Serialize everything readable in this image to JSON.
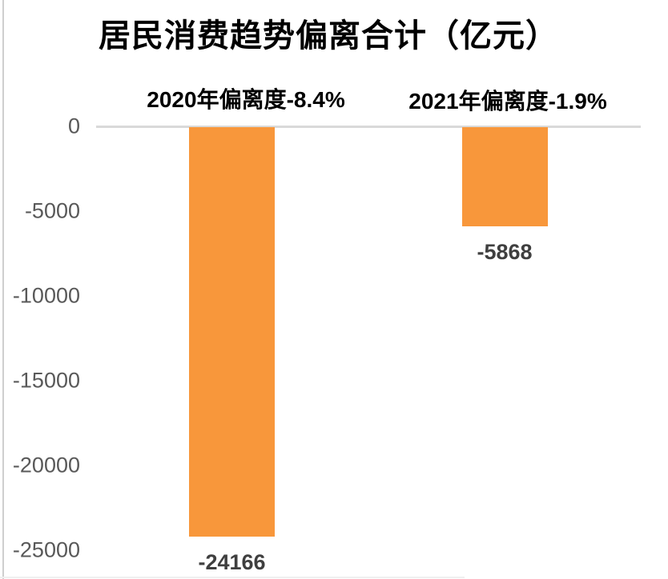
{
  "page": {
    "background_color": "#ffffff",
    "left_edge_line_color": "#cfcfcf"
  },
  "chart_data": {
    "type": "bar",
    "title": "居民消费趋势偏离合计（亿元）",
    "xlabel": "",
    "ylabel": "",
    "categories": [
      "2020",
      "2021"
    ],
    "values": [
      -24166,
      -5868
    ],
    "value_labels": [
      "-24166",
      "-5868"
    ],
    "annotations": [
      {
        "text": "2020年偏离度-8.4%"
      },
      {
        "text": "2021年偏离度-1.9%"
      }
    ],
    "yticks": [
      0,
      -5000,
      -10000,
      -15000,
      -20000,
      -25000
    ],
    "ytick_labels": [
      "0",
      "-5000",
      "-10000",
      "-15000",
      "-20000",
      "-25000"
    ],
    "ylim": [
      -25000,
      0
    ],
    "grid": false,
    "legend_position": "none",
    "bar_color": "#F8973B",
    "axis_line_color": "#D9D9D9",
    "tick_label_color": "#595959",
    "value_label_color": "#3F3F3F",
    "title_color": "#000000",
    "annotation_color": "#000000"
  }
}
